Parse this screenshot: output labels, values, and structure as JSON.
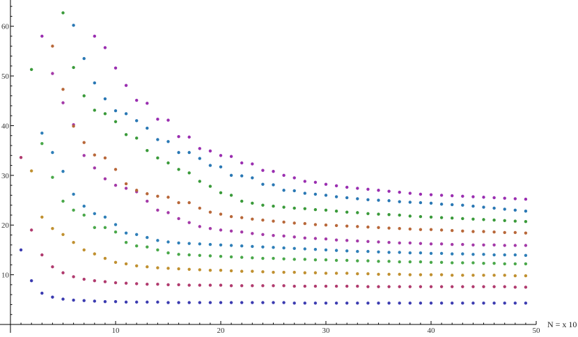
{
  "chart_data": {
    "type": "scatter",
    "title": "",
    "xlabel": "N = x   10",
    "ylabel": "",
    "xlim": [
      0,
      50
    ],
    "ylim": [
      0,
      65
    ],
    "xticks": [
      10,
      20,
      30,
      40,
      50
    ],
    "yticks": [
      10,
      20,
      30,
      40,
      50,
      60
    ],
    "grid": false,
    "legend": "none",
    "series": [
      {
        "color": "#3b3bb0",
        "x": [
          1,
          2,
          3,
          4,
          5,
          6,
          7,
          8,
          9,
          10,
          11,
          12,
          13,
          14,
          15,
          16,
          17,
          18,
          19,
          20,
          21,
          22,
          23,
          24,
          25,
          26,
          27,
          28,
          29,
          30,
          31,
          32,
          33,
          34,
          35,
          36,
          37,
          38,
          39,
          40,
          41,
          42,
          43,
          44,
          45,
          46,
          47,
          48,
          49
        ],
        "y": [
          15.0,
          8.8,
          6.3,
          5.5,
          5.1,
          4.9,
          4.8,
          4.7,
          4.6,
          4.6,
          4.5,
          4.5,
          4.5,
          4.5,
          4.4,
          4.4,
          4.4,
          4.4,
          4.4,
          4.4,
          4.4,
          4.4,
          4.4,
          4.4,
          4.4,
          4.4,
          4.3,
          4.3,
          4.3,
          4.3,
          4.3,
          4.3,
          4.3,
          4.3,
          4.3,
          4.3,
          4.3,
          4.3,
          4.3,
          4.3,
          4.3,
          4.3,
          4.3,
          4.3,
          4.3,
          4.3,
          4.3,
          4.3,
          4.3
        ]
      },
      {
        "color": "#b03b6e",
        "x": [
          1,
          2,
          3,
          4,
          5,
          6,
          7,
          8,
          9,
          10,
          11,
          12,
          13,
          14,
          15,
          16,
          17,
          18,
          19,
          20,
          21,
          22,
          23,
          24,
          25,
          26,
          27,
          28,
          29,
          30,
          31,
          32,
          33,
          34,
          35,
          36,
          37,
          38,
          39,
          40,
          41,
          42,
          43,
          44,
          45,
          46,
          47,
          48,
          49
        ],
        "y": [
          33.6,
          19.0,
          14.0,
          11.6,
          10.4,
          9.6,
          9.1,
          8.8,
          8.6,
          8.4,
          8.3,
          8.2,
          8.1,
          8.1,
          8.0,
          8.0,
          7.9,
          7.9,
          7.9,
          7.9,
          7.8,
          7.8,
          7.8,
          7.8,
          7.8,
          7.8,
          7.7,
          7.7,
          7.7,
          7.7,
          7.7,
          7.7,
          7.7,
          7.6,
          7.6,
          7.6,
          7.6,
          7.6,
          7.6,
          7.6,
          7.6,
          7.6,
          7.6,
          7.6,
          7.6,
          7.6,
          7.6,
          7.5,
          7.5
        ]
      },
      {
        "color": "#c09030",
        "x": [
          2,
          3,
          4,
          5,
          6,
          7,
          8,
          9,
          10,
          11,
          12,
          13,
          14,
          15,
          16,
          17,
          18,
          19,
          20,
          21,
          22,
          23,
          24,
          25,
          26,
          27,
          28,
          29,
          30,
          31,
          32,
          33,
          34,
          35,
          36,
          37,
          38,
          39,
          40,
          41,
          42,
          43,
          44,
          45,
          46,
          47,
          48,
          49
        ],
        "y": [
          30.9,
          21.6,
          19.3,
          18.1,
          16.5,
          15.0,
          14.2,
          13.3,
          12.5,
          12.2,
          11.8,
          11.6,
          11.4,
          11.3,
          11.2,
          11.1,
          11.0,
          10.9,
          10.9,
          10.8,
          10.7,
          10.7,
          10.6,
          10.5,
          10.5,
          10.5,
          10.4,
          10.4,
          10.3,
          10.3,
          10.3,
          10.2,
          10.2,
          10.1,
          10.1,
          10.1,
          10.0,
          10.0,
          10.0,
          10.0,
          9.9,
          9.9,
          9.9,
          9.9,
          9.9,
          9.9,
          9.8,
          9.8
        ]
      },
      {
        "color": "#4aa84a",
        "x": [
          3,
          4,
          5,
          6,
          7,
          8,
          9,
          10,
          11,
          12,
          13,
          14,
          15,
          16,
          17,
          18,
          19,
          20,
          21,
          22,
          23,
          24,
          25,
          26,
          27,
          28,
          29,
          30,
          31,
          32,
          33,
          34,
          35,
          36,
          37,
          38,
          39,
          40,
          41,
          42,
          43,
          44,
          45,
          46,
          47,
          48,
          49
        ],
        "y": [
          36.4,
          29.6,
          24.8,
          23.0,
          22.0,
          19.5,
          19.5,
          18.6,
          16.5,
          15.8,
          15.6,
          15.0,
          14.4,
          14.1,
          14.0,
          13.9,
          13.8,
          13.7,
          13.6,
          13.5,
          13.4,
          13.3,
          13.3,
          13.2,
          13.1,
          13.1,
          13.0,
          13.0,
          12.9,
          12.9,
          12.8,
          12.8,
          12.7,
          12.7,
          12.6,
          12.6,
          12.6,
          12.5,
          12.5,
          12.4,
          12.4,
          12.4,
          12.3,
          12.3,
          12.2,
          12.2,
          12.2
        ]
      },
      {
        "color": "#2f7fb8",
        "x": [
          3,
          4,
          5,
          6,
          7,
          8,
          9,
          10,
          11,
          12,
          13,
          14,
          15,
          16,
          17,
          18,
          19,
          20,
          21,
          22,
          23,
          24,
          25,
          26,
          27,
          28,
          29,
          30,
          31,
          32,
          33,
          34,
          35,
          36,
          37,
          38,
          39,
          40,
          41,
          42,
          43,
          44,
          45,
          46,
          47,
          48,
          49
        ],
        "y": [
          38.5,
          34.6,
          30.8,
          26.2,
          23.8,
          22.3,
          21.6,
          20.1,
          18.4,
          18.1,
          17.5,
          16.9,
          16.6,
          16.4,
          16.3,
          16.2,
          16.1,
          16.0,
          15.9,
          15.8,
          15.7,
          15.6,
          15.5,
          15.4,
          15.3,
          15.2,
          15.1,
          15.0,
          14.9,
          14.8,
          14.7,
          14.7,
          14.6,
          14.5,
          14.5,
          14.4,
          14.4,
          14.3,
          14.3,
          14.2,
          14.2,
          14.1,
          14.1,
          14.0,
          14.0,
          14.0,
          13.9
        ]
      },
      {
        "color": "#a43aa8",
        "x": [
          4,
          5,
          6,
          7,
          8,
          9,
          10,
          11,
          12,
          13,
          14,
          15,
          16,
          17,
          18,
          19,
          20,
          21,
          22,
          23,
          24,
          25,
          26,
          27,
          28,
          29,
          30,
          31,
          32,
          33,
          34,
          35,
          36,
          37,
          38,
          39,
          40,
          41,
          42,
          43,
          44,
          45,
          46,
          47,
          48,
          49
        ],
        "y": [
          50.5,
          44.6,
          40.2,
          34.0,
          31.5,
          29.3,
          28.0,
          27.4,
          26.7,
          24.8,
          23.0,
          22.5,
          21.3,
          20.5,
          19.7,
          19.3,
          19.0,
          18.8,
          18.6,
          18.3,
          18.1,
          17.9,
          17.8,
          17.6,
          17.4,
          17.3,
          17.2,
          17.0,
          16.9,
          16.8,
          16.7,
          16.6,
          16.5,
          16.4,
          16.4,
          16.3,
          16.2,
          16.2,
          16.1,
          16.1,
          16.0,
          16.0,
          16.0,
          15.9,
          15.9,
          15.9
        ]
      },
      {
        "color": "#b8683a",
        "x": [
          4,
          5,
          6,
          7,
          8,
          9,
          10,
          11,
          12,
          13,
          14,
          15,
          16,
          17,
          18,
          19,
          20,
          21,
          22,
          23,
          24,
          25,
          26,
          27,
          28,
          29,
          30,
          31,
          32,
          33,
          34,
          35,
          36,
          37,
          38,
          39,
          40,
          41,
          42,
          43,
          44,
          45,
          46,
          47,
          48,
          49
        ],
        "y": [
          56.0,
          47.3,
          39.9,
          36.6,
          34.1,
          33.5,
          31.2,
          28.3,
          27.0,
          26.3,
          25.8,
          25.6,
          24.5,
          24.5,
          23.4,
          22.6,
          22.2,
          21.7,
          21.5,
          21.2,
          21.0,
          20.8,
          20.6,
          20.4,
          20.3,
          20.1,
          20.0,
          19.9,
          19.8,
          19.7,
          19.6,
          19.5,
          19.4,
          19.3,
          19.2,
          19.1,
          19.1,
          19.0,
          18.9,
          18.8,
          18.7,
          18.7,
          18.6,
          18.5,
          18.5,
          18.4
        ]
      },
      {
        "color": "#3a9a3a",
        "x": [
          2,
          5,
          6,
          7,
          8,
          9,
          10,
          11,
          12,
          13,
          14,
          15,
          16,
          17,
          18,
          19,
          20,
          21,
          22,
          23,
          24,
          25,
          26,
          27,
          28,
          29,
          30,
          31,
          32,
          33,
          34,
          35,
          36,
          37,
          38,
          39,
          40,
          41,
          42,
          43,
          44,
          45,
          46,
          47,
          48,
          49
        ],
        "y": [
          51.3,
          62.7,
          51.7,
          46.0,
          43.1,
          42.4,
          40.8,
          38.2,
          37.5,
          35.0,
          33.5,
          32.5,
          31.2,
          30.5,
          28.8,
          27.8,
          26.5,
          26.0,
          24.8,
          24.4,
          24.0,
          23.8,
          23.6,
          23.4,
          23.3,
          23.1,
          23.0,
          22.8,
          22.6,
          22.5,
          22.3,
          22.2,
          22.1,
          22.0,
          21.8,
          21.7,
          21.6,
          21.5,
          21.4,
          21.3,
          21.2,
          21.1,
          21.0,
          20.9,
          20.8,
          20.7
        ]
      },
      {
        "color": "#2a78b4",
        "x": [
          6,
          7,
          8,
          9,
          10,
          11,
          12,
          13,
          14,
          15,
          16,
          17,
          18,
          19,
          20,
          21,
          22,
          23,
          24,
          25,
          26,
          27,
          28,
          29,
          30,
          31,
          32,
          33,
          34,
          35,
          36,
          37,
          38,
          39,
          40,
          41,
          42,
          43,
          44,
          45,
          46,
          47,
          48,
          49
        ],
        "y": [
          60.2,
          53.5,
          48.6,
          45.4,
          43.0,
          42.4,
          41.0,
          39.5,
          37.2,
          36.8,
          34.6,
          34.6,
          33.4,
          32.0,
          31.7,
          30.0,
          29.9,
          29.5,
          28.2,
          28.1,
          27.0,
          26.9,
          26.4,
          26.2,
          26.0,
          25.7,
          25.5,
          25.3,
          25.1,
          25.0,
          24.9,
          24.7,
          24.6,
          24.5,
          24.4,
          24.2,
          24.1,
          24.0,
          23.8,
          23.6,
          23.4,
          23.2,
          23.0,
          22.8
        ]
      },
      {
        "color": "#9a2eb0",
        "x": [
          3,
          8,
          9,
          10,
          11,
          12,
          13,
          14,
          15,
          16,
          17,
          18,
          19,
          20,
          21,
          22,
          23,
          24,
          25,
          26,
          27,
          28,
          29,
          30,
          31,
          32,
          33,
          34,
          35,
          36,
          37,
          38,
          39,
          40,
          41,
          42,
          43,
          44,
          45,
          46,
          47,
          48,
          49
        ],
        "y": [
          58.0,
          58.0,
          55.7,
          51.6,
          48.1,
          45.1,
          44.5,
          41.3,
          41.1,
          37.8,
          37.7,
          35.4,
          34.9,
          34.0,
          33.8,
          32.5,
          32.3,
          31.0,
          30.8,
          30.0,
          29.5,
          28.8,
          28.6,
          28.2,
          27.9,
          27.6,
          27.4,
          27.2,
          27.0,
          26.8,
          26.6,
          26.4,
          26.2,
          26.1,
          26.0,
          25.9,
          25.8,
          25.7,
          25.6,
          25.5,
          25.4,
          25.3,
          25.2
        ]
      }
    ]
  }
}
